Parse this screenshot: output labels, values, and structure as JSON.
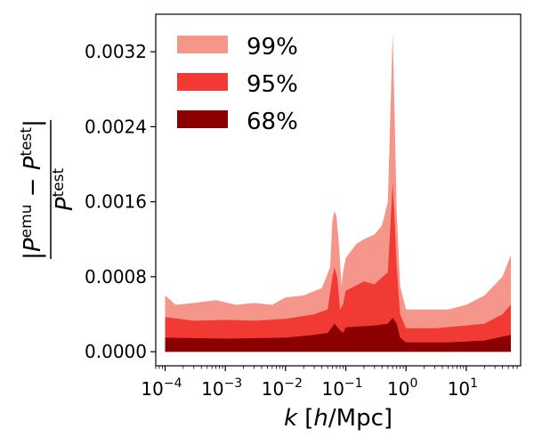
{
  "chart_data": {
    "type": "area",
    "title": "",
    "xscale": "log",
    "xlim": [
      7e-05,
      80
    ],
    "ylim": [
      -0.00015,
      0.0036
    ],
    "grid": false,
    "legend_position": "upper-left",
    "xlabel": {
      "main": "k",
      "unit": "[h/Mpc]"
    },
    "ylabel": {
      "numerator": "|P^emu − P^test|",
      "denominator": "P^test"
    },
    "yticks": [
      {
        "value": 0.0,
        "label": "0.0000"
      },
      {
        "value": 0.0008,
        "label": "0.0008"
      },
      {
        "value": 0.0016,
        "label": "0.0016"
      },
      {
        "value": 0.0024,
        "label": "0.0024"
      },
      {
        "value": 0.0032,
        "label": "0.0032"
      }
    ],
    "xticks": [
      {
        "value": 0.0001,
        "base": "10",
        "exp": "−4"
      },
      {
        "value": 0.001,
        "base": "10",
        "exp": "−3"
      },
      {
        "value": 0.01,
        "base": "10",
        "exp": "−2"
      },
      {
        "value": 0.1,
        "base": "10",
        "exp": "−1"
      },
      {
        "value": 1,
        "base": "10",
        "exp": "0"
      },
      {
        "value": 10,
        "base": "10",
        "exp": "1"
      }
    ],
    "series": [
      {
        "name": "99%",
        "color": "#f4968a",
        "points": [
          [
            0.0001,
            0.0006
          ],
          [
            0.00015,
            0.0005
          ],
          [
            0.0003,
            0.00052
          ],
          [
            0.0007,
            0.00055
          ],
          [
            0.0015,
            0.0005
          ],
          [
            0.003,
            0.00052
          ],
          [
            0.006,
            0.0005
          ],
          [
            0.01,
            0.00058
          ],
          [
            0.02,
            0.0006
          ],
          [
            0.04,
            0.00068
          ],
          [
            0.055,
            0.0009
          ],
          [
            0.06,
            0.0014
          ],
          [
            0.065,
            0.0015
          ],
          [
            0.07,
            0.00145
          ],
          [
            0.078,
            0.0011
          ],
          [
            0.085,
            0.0007
          ],
          [
            0.09,
            0.00085
          ],
          [
            0.1,
            0.001
          ],
          [
            0.15,
            0.00115
          ],
          [
            0.2,
            0.0012
          ],
          [
            0.3,
            0.00125
          ],
          [
            0.4,
            0.00135
          ],
          [
            0.5,
            0.0016
          ],
          [
            0.6,
            0.0034
          ],
          [
            0.65,
            0.0025
          ],
          [
            0.7,
            0.0015
          ],
          [
            0.8,
            0.0007
          ],
          [
            1.0,
            0.00045
          ],
          [
            2,
            0.00045
          ],
          [
            5,
            0.00045
          ],
          [
            10,
            0.0005
          ],
          [
            20,
            0.0006
          ],
          [
            40,
            0.0008
          ],
          [
            55,
            0.00103
          ]
        ]
      },
      {
        "name": "95%",
        "color": "#f23a35",
        "points": [
          [
            0.0001,
            0.00037
          ],
          [
            0.0003,
            0.00033
          ],
          [
            0.001,
            0.00034
          ],
          [
            0.003,
            0.00033
          ],
          [
            0.01,
            0.00035
          ],
          [
            0.03,
            0.0004
          ],
          [
            0.05,
            0.00045
          ],
          [
            0.06,
            0.0008
          ],
          [
            0.065,
            0.0009
          ],
          [
            0.072,
            0.0008
          ],
          [
            0.08,
            0.00045
          ],
          [
            0.09,
            0.0005
          ],
          [
            0.1,
            0.00065
          ],
          [
            0.2,
            0.00075
          ],
          [
            0.3,
            0.00072
          ],
          [
            0.5,
            0.00085
          ],
          [
            0.6,
            0.0018
          ],
          [
            0.65,
            0.0014
          ],
          [
            0.7,
            0.0009
          ],
          [
            0.8,
            0.0004
          ],
          [
            1.0,
            0.00025
          ],
          [
            3,
            0.00025
          ],
          [
            10,
            0.00028
          ],
          [
            20,
            0.0003
          ],
          [
            40,
            0.0004
          ],
          [
            55,
            0.0005
          ]
        ]
      },
      {
        "name": "68%",
        "color": "#8b0000",
        "points": [
          [
            0.0001,
            0.00015
          ],
          [
            0.001,
            0.00014
          ],
          [
            0.01,
            0.00015
          ],
          [
            0.03,
            0.00018
          ],
          [
            0.05,
            0.0002
          ],
          [
            0.065,
            0.0003
          ],
          [
            0.075,
            0.00025
          ],
          [
            0.09,
            0.0002
          ],
          [
            0.1,
            0.00026
          ],
          [
            0.3,
            0.00028
          ],
          [
            0.5,
            0.0003
          ],
          [
            0.6,
            0.00036
          ],
          [
            0.7,
            0.0003
          ],
          [
            0.8,
            0.00015
          ],
          [
            1.0,
            0.0001
          ],
          [
            5,
            0.0001
          ],
          [
            20,
            0.00012
          ],
          [
            55,
            0.00018
          ]
        ]
      }
    ]
  }
}
